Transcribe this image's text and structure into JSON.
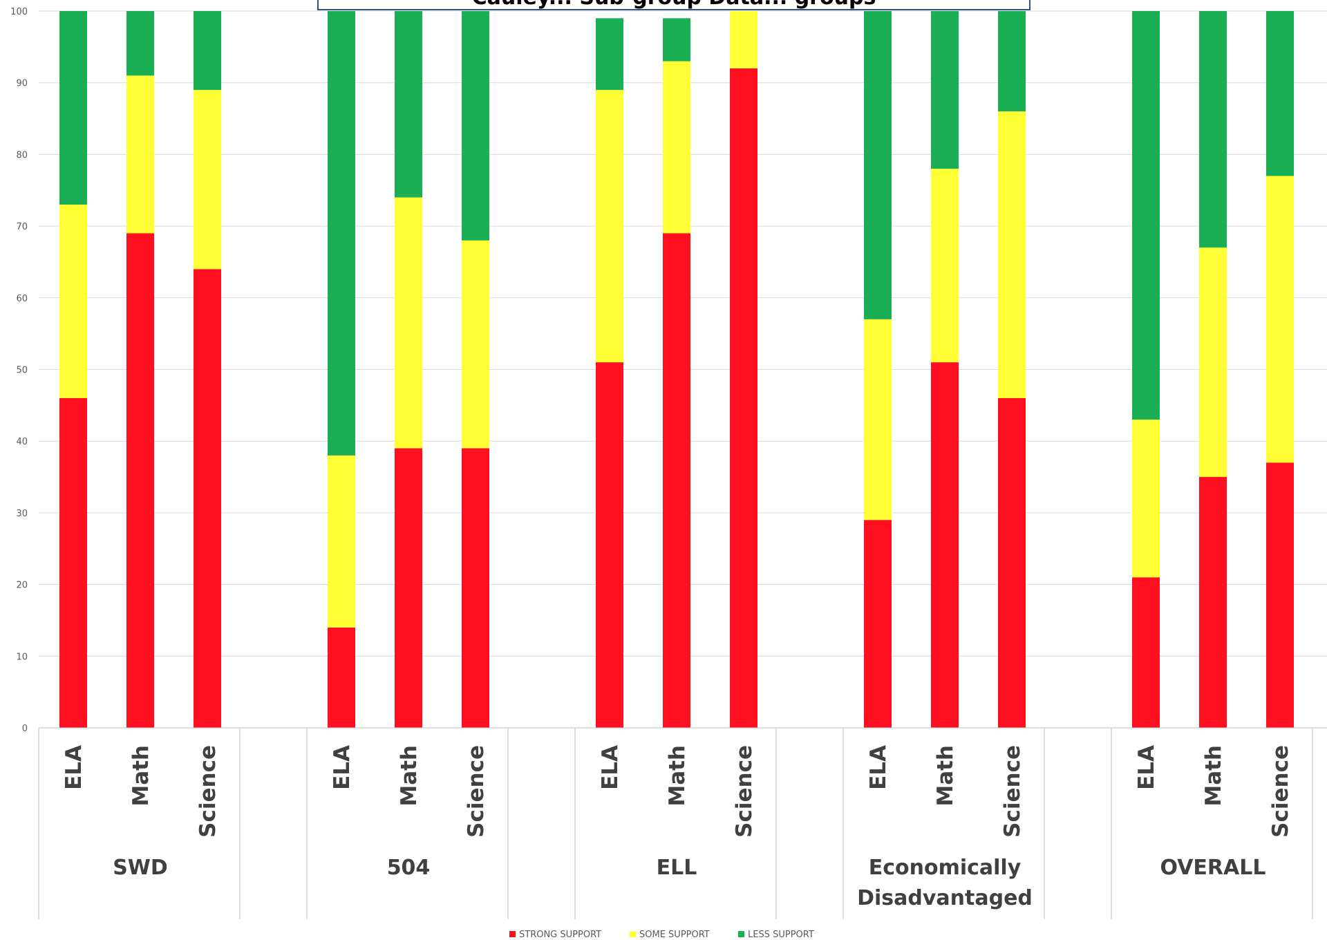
{
  "chart_data": {
    "type": "bar",
    "stacked": true,
    "title": "Cauley... Sub-group Data... groups",
    "groups": [
      {
        "label": "SWD",
        "categories": [
          "ELA",
          "Math",
          "Science"
        ]
      },
      {
        "label": "504",
        "categories": [
          "ELA",
          "Math",
          "Science"
        ]
      },
      {
        "label": "ELL",
        "categories": [
          "ELA",
          "Math",
          "Science"
        ]
      },
      {
        "label": "Economically Disadvantaged",
        "label_lines": [
          "Economically",
          "Disadvantaged"
        ],
        "categories": [
          "ELA",
          "Math",
          "Science"
        ]
      },
      {
        "label": "OVERALL",
        "categories": [
          "ELA",
          "Math",
          "Science"
        ]
      }
    ],
    "series": [
      {
        "name": "STRONG SUPPORT",
        "color": "#ff0f1f",
        "values": [
          46,
          69,
          64,
          14,
          39,
          39,
          51,
          69,
          92,
          29,
          51,
          46,
          21,
          35,
          37
        ]
      },
      {
        "name": "SOME SUPPORT",
        "color": "#ffff33",
        "values": [
          27,
          22,
          25,
          24,
          35,
          29,
          38,
          24,
          8,
          28,
          27,
          40,
          22,
          32,
          40
        ]
      },
      {
        "name": "LESS SUPPORT",
        "color": "#1aaf54",
        "values": [
          27,
          9,
          11,
          62,
          26,
          32,
          10,
          6,
          0,
          43,
          22,
          14,
          57,
          33,
          23
        ]
      }
    ],
    "ylim": [
      0,
      100
    ],
    "yticks": [
      0,
      10,
      20,
      30,
      40,
      50,
      60,
      70,
      80,
      90,
      100
    ],
    "grid": true,
    "legend": "bottom-center"
  }
}
